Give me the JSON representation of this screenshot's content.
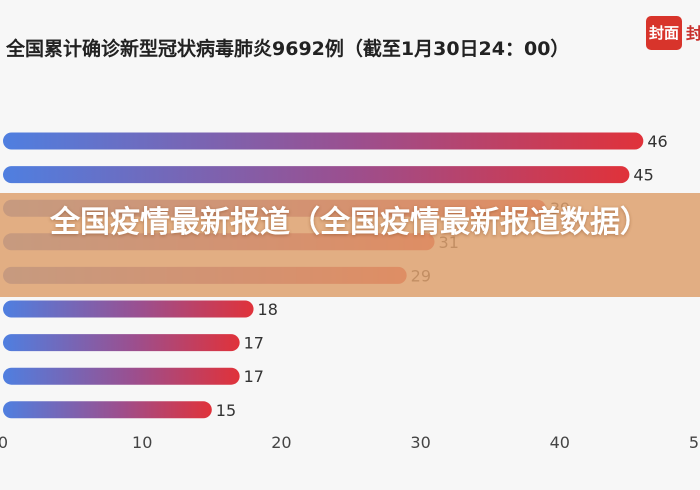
{
  "title": "全国累计确诊新型冠状病毒肺炎9692例（截至1月30日24：00）",
  "logo": {
    "badge": "封面",
    "text": "封"
  },
  "banner": "全国疫情最新报道（全国疫情最新报道数据）",
  "colors": {
    "bar_start": "#4f7fe0",
    "bar_end": "#e0323a",
    "banner": "#dea06c",
    "logo": "#d8342b"
  },
  "chart_data": {
    "type": "bar",
    "orientation": "horizontal",
    "title": "全国累计确诊新型冠状病毒肺炎9692例（截至1月30日24：00）",
    "categories": [
      "",
      "",
      "",
      "",
      "",
      "",
      "",
      "",
      ""
    ],
    "values": [
      46,
      45,
      39,
      31,
      29,
      18,
      17,
      17,
      15
    ],
    "xlim": [
      0,
      50
    ],
    "xticks": [
      0,
      10,
      20,
      30,
      40,
      50
    ],
    "grid": false,
    "legend": "none"
  }
}
